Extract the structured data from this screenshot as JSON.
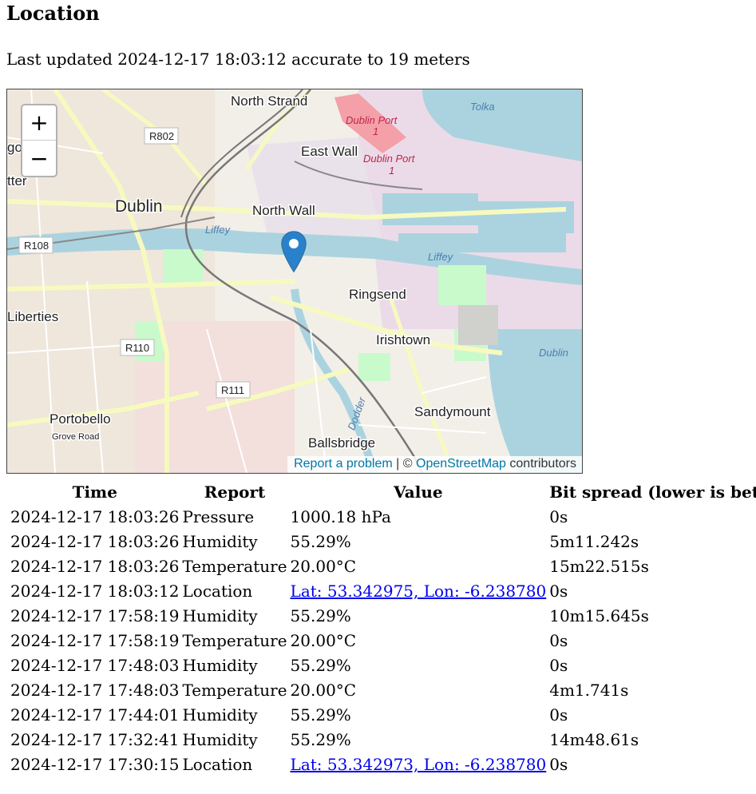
{
  "heading": "Location",
  "last_updated": "Last updated 2024-12-17 18:03:12 accurate to 19 meters",
  "map": {
    "zoom_in": "+",
    "zoom_out": "−",
    "labels": {
      "north_strand": "North Strand",
      "dublin_port_1": "Dublin Port",
      "dublin_port_1_num": "1",
      "dublin_port_2": "Dublin Port",
      "dublin_port_2_num": "1",
      "tolka": "Tolka",
      "r802": "R802",
      "east_wall": "East Wall",
      "dublin": "Dublin",
      "north_wall": "North Wall",
      "liffey_1": "Liffey",
      "liffey_2": "Liffey",
      "r108": "R108",
      "ringsend": "Ringsend",
      "liberties": "Liberties",
      "irishtown": "Irishtown",
      "dublin_bay": "Dublin",
      "r110": "R110",
      "r111": "R111",
      "sandymount": "Sandymount",
      "portobello": "Portobello",
      "grove_road": "Grove Road",
      "dodder": "Dodder",
      "ballsbridge": "Ballsbridge",
      "edge_go": "go",
      "edge_tter": "tter"
    },
    "attribution": {
      "report": "Report a problem",
      "separator": " | © ",
      "osm": "OpenStreetMap",
      "suffix": " contributors"
    },
    "colors": {
      "water": "#aad3df",
      "land": "#f2efe9",
      "industrial": "#ebdbe8",
      "park": "#c8facc",
      "road_major": "#f7fabf",
      "marker": "#2a81cb"
    }
  },
  "table": {
    "headers": [
      "Time",
      "Report",
      "Value",
      "Bit spread (lower is better)"
    ],
    "rows": [
      {
        "time": "2024-12-17 18:03:26",
        "report": "Pressure",
        "value": "1000.18 hPa",
        "link": false,
        "spread": "0s"
      },
      {
        "time": "2024-12-17 18:03:26",
        "report": "Humidity",
        "value": "55.29%",
        "link": false,
        "spread": "5m11.242s"
      },
      {
        "time": "2024-12-17 18:03:26",
        "report": "Temperature",
        "value": "20.00°C",
        "link": false,
        "spread": "15m22.515s"
      },
      {
        "time": "2024-12-17 18:03:12",
        "report": "Location",
        "value": "Lat: 53.342975, Lon: -6.238780",
        "link": true,
        "spread": "0s"
      },
      {
        "time": "2024-12-17 17:58:19",
        "report": "Humidity",
        "value": "55.29%",
        "link": false,
        "spread": "10m15.645s"
      },
      {
        "time": "2024-12-17 17:58:19",
        "report": "Temperature",
        "value": "20.00°C",
        "link": false,
        "spread": "0s"
      },
      {
        "time": "2024-12-17 17:48:03",
        "report": "Humidity",
        "value": "55.29%",
        "link": false,
        "spread": "0s"
      },
      {
        "time": "2024-12-17 17:48:03",
        "report": "Temperature",
        "value": "20.00°C",
        "link": false,
        "spread": "4m1.741s"
      },
      {
        "time": "2024-12-17 17:44:01",
        "report": "Humidity",
        "value": "55.29%",
        "link": false,
        "spread": "0s"
      },
      {
        "time": "2024-12-17 17:32:41",
        "report": "Humidity",
        "value": "55.29%",
        "link": false,
        "spread": "14m48.61s"
      },
      {
        "time": "2024-12-17 17:30:15",
        "report": "Location",
        "value": "Lat: 53.342973, Lon: -6.238780",
        "link": true,
        "spread": "0s"
      }
    ]
  }
}
